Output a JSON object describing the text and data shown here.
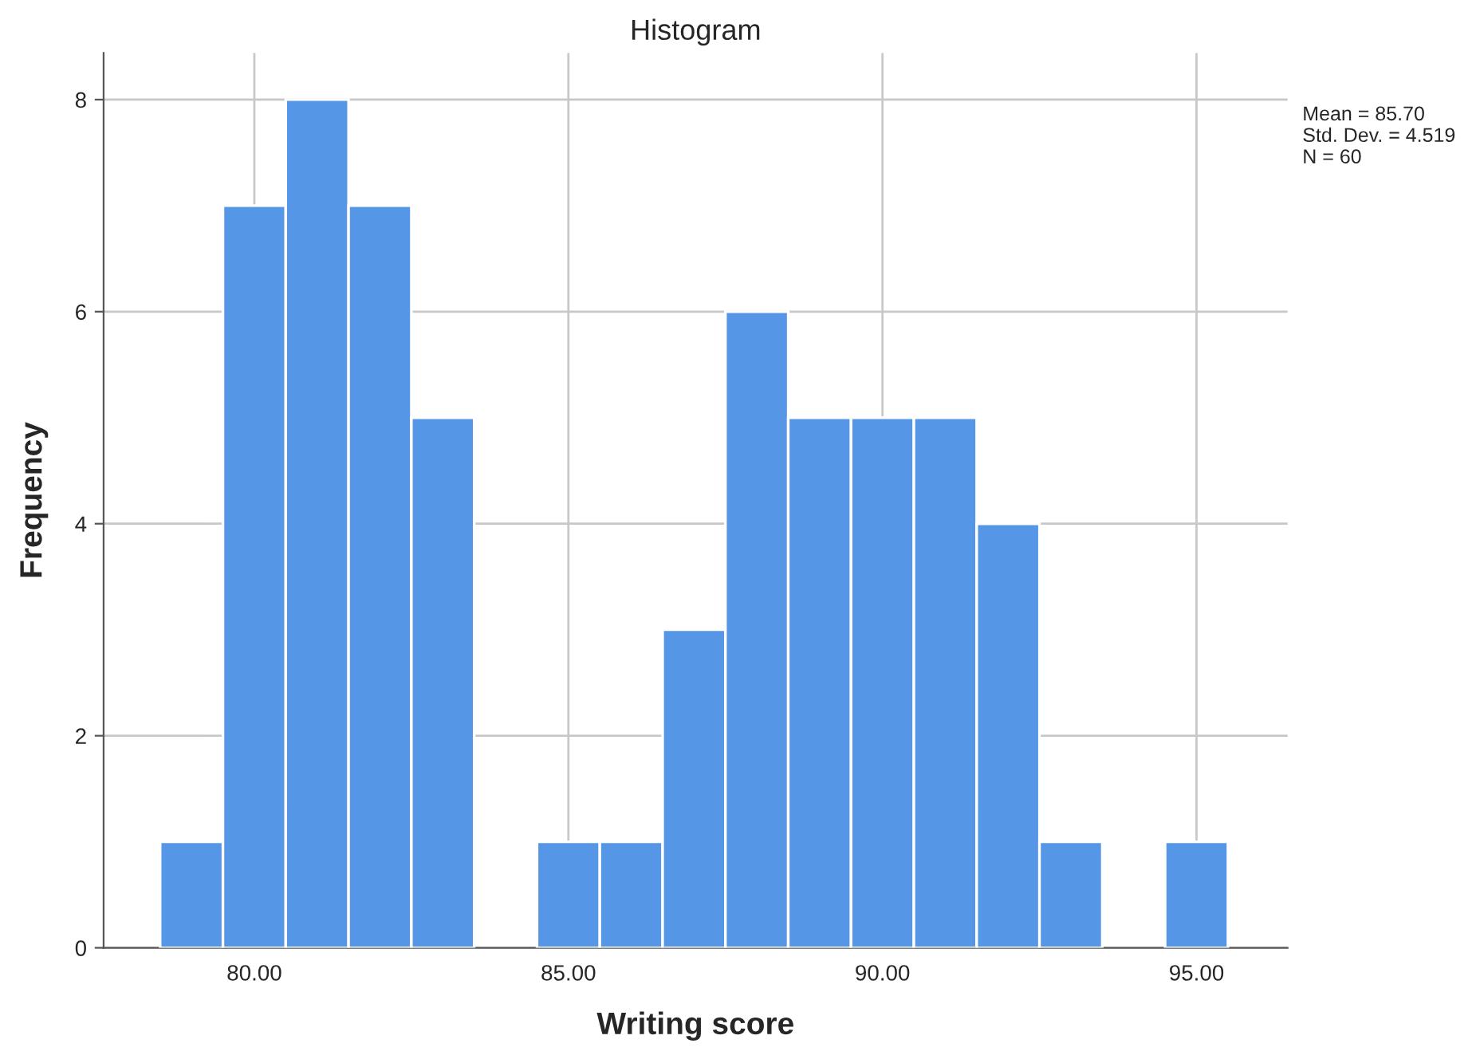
{
  "chart_data": {
    "type": "histogram",
    "title": "Histogram",
    "xlabel": "Writing score",
    "ylabel": "Frequency",
    "bins": [
      78.5,
      79.5,
      80.5,
      81.5,
      82.5,
      83.5,
      84.5,
      85.5,
      86.5,
      87.5,
      88.5,
      89.5,
      90.5,
      91.5,
      92.5,
      93.5,
      94.5,
      95.5
    ],
    "values": [
      1,
      7,
      8,
      7,
      5,
      0,
      1,
      1,
      3,
      6,
      5,
      5,
      5,
      4,
      1,
      0,
      1
    ],
    "color": "#5596e6",
    "xlim": [
      77.6,
      96.45
    ],
    "ylim": [
      0,
      8.44
    ],
    "xticks": [
      {
        "value": 80,
        "label": "80.00"
      },
      {
        "value": 85,
        "label": "85.00"
      },
      {
        "value": 90,
        "label": "90.00"
      },
      {
        "value": 95,
        "label": "95.00"
      }
    ],
    "yticks": [
      0,
      2,
      4,
      6,
      8
    ],
    "grid": true,
    "annotations": [
      "Mean = 85.70\nStd. Dev. = 4.519\nN = 60"
    ]
  }
}
